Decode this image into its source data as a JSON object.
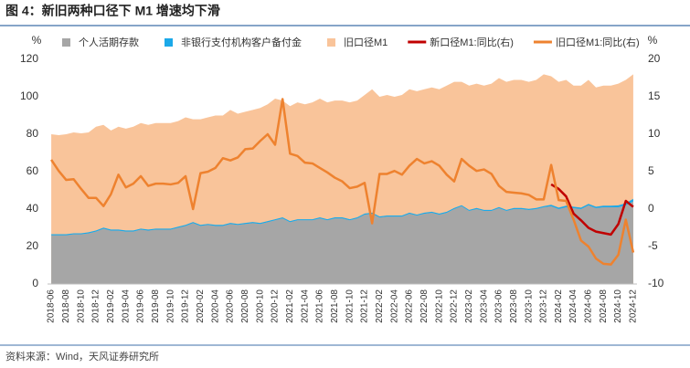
{
  "chart_data": {
    "type": "area-line",
    "title": "图 4：新旧两种口径下 M1 增速均下滑",
    "source": "资料来源：Wind，天风证券研究所",
    "y_label": "%",
    "y2_label": "%",
    "categories": [
      "2018-06",
      null,
      "2018-08",
      null,
      "2018-10",
      null,
      "2018-12",
      null,
      "2019-02",
      null,
      "2019-04",
      null,
      "2019-06",
      null,
      "2019-08",
      null,
      "2019-10",
      null,
      "2019-12",
      null,
      "2020-02",
      null,
      "2020-04",
      null,
      "2020-06",
      null,
      "2020-08",
      null,
      "2020-10",
      null,
      "2020-12",
      null,
      "2021-02",
      null,
      "2021-04",
      null,
      "2021-06",
      null,
      "2021-08",
      null,
      "2021-10",
      null,
      "2021-12",
      null,
      "2022-02",
      null,
      "2022-04",
      null,
      "2022-06",
      null,
      "2022-08",
      null,
      "2022-10",
      null,
      "2022-12",
      null,
      "2023-02",
      null,
      "2023-04",
      null,
      "2023-06",
      null,
      "2023-08",
      null,
      "2023-10",
      null,
      "2023-12",
      null,
      "2024-02",
      null,
      "2024-04",
      null,
      "2024-06",
      null,
      "2024-08",
      null,
      "2024-10",
      null,
      "2024-12"
    ],
    "ylim": [
      0,
      120
    ],
    "yticks": [
      0,
      20,
      40,
      60,
      80,
      100,
      120
    ],
    "y2lim": [
      -10,
      20
    ],
    "y2ticks": [
      -10,
      -5,
      0,
      5,
      10,
      15,
      20
    ],
    "grid": false,
    "legend": "top",
    "series": [
      {
        "name": "旧口径M1",
        "mark": "area",
        "color": "#f9c49a",
        "legend_order": 2,
        "values": [
          80,
          79.5,
          80,
          81,
          80.5,
          81,
          84,
          85,
          82,
          84,
          83,
          84,
          86,
          85,
          86,
          86,
          86,
          87,
          89,
          88,
          88,
          89,
          90,
          90,
          93,
          91,
          92,
          93,
          94,
          96,
          99,
          98,
          95,
          97,
          96,
          97,
          99,
          97,
          98,
          98,
          97,
          98,
          101,
          104,
          100,
          101,
          100,
          101,
          104,
          103,
          104,
          105,
          104,
          106,
          108,
          108,
          106,
          107,
          106,
          107,
          110,
          108,
          109,
          109,
          108,
          109,
          112,
          111,
          108,
          109,
          106,
          106,
          109,
          105,
          106,
          106,
          107,
          109,
          112
        ]
      },
      {
        "name": "个人活期存款",
        "mark": "area",
        "stack": "s",
        "color": "#a6a6a6",
        "legend_order": 0,
        "values": [
          26,
          26,
          26,
          26.5,
          26.5,
          27,
          28,
          29.5,
          28.5,
          28.5,
          28,
          28,
          29,
          28.5,
          29,
          29,
          29,
          30,
          31,
          32.5,
          31,
          31.5,
          31,
          31,
          32,
          31.5,
          32,
          32.5,
          32,
          33,
          34,
          35,
          33,
          34,
          34,
          34,
          35,
          34,
          35,
          35,
          34,
          35,
          37,
          37.5,
          35.5,
          36,
          36,
          36,
          37.5,
          36.5,
          37.5,
          38,
          37,
          38,
          40,
          41.5,
          39,
          40,
          39,
          39,
          40.5,
          39,
          40,
          40,
          39.5,
          40,
          41,
          41.5,
          40,
          41,
          40.5,
          40,
          42,
          40.5,
          41,
          41,
          41,
          42,
          44
        ]
      },
      {
        "name": "非银行支付机构客户备付金",
        "mark": "area",
        "stack": "s",
        "color": "#1ba9e9",
        "legend_order": 1,
        "values": [
          0.6,
          0.6,
          0.6,
          0.6,
          0.6,
          0.6,
          0.6,
          0.6,
          0.6,
          0.6,
          0.6,
          0.6,
          0.6,
          0.6,
          0.6,
          0.6,
          0.6,
          0.6,
          0.6,
          0.6,
          0.6,
          0.6,
          0.6,
          0.6,
          0.6,
          0.6,
          0.6,
          0.6,
          0.6,
          0.6,
          0.6,
          0.6,
          0.6,
          0.6,
          0.6,
          0.6,
          0.6,
          0.6,
          0.6,
          0.6,
          0.6,
          0.6,
          0.6,
          0.6,
          0.6,
          0.6,
          0.6,
          0.6,
          0.6,
          0.6,
          0.6,
          0.6,
          0.6,
          0.6,
          0.6,
          0.6,
          0.6,
          0.6,
          0.6,
          0.6,
          0.6,
          0.6,
          0.6,
          0.6,
          0.6,
          0.6,
          0.6,
          0.8,
          0.8,
          0.8,
          0.8,
          0.8,
          0.8,
          0.8,
          0.8,
          0.8,
          1,
          1.2,
          1.5
        ]
      },
      {
        "name": "新口径M1:同比(右)",
        "mark": "line",
        "axis": "y2",
        "color": "#c00000",
        "legend_order": 3,
        "values": [
          null,
          null,
          null,
          null,
          null,
          null,
          null,
          null,
          null,
          null,
          null,
          null,
          null,
          null,
          null,
          null,
          null,
          null,
          null,
          null,
          null,
          null,
          null,
          null,
          null,
          null,
          null,
          null,
          null,
          null,
          null,
          null,
          null,
          null,
          null,
          null,
          null,
          null,
          null,
          null,
          null,
          null,
          null,
          null,
          null,
          null,
          null,
          null,
          null,
          null,
          null,
          null,
          null,
          null,
          null,
          null,
          null,
          null,
          null,
          null,
          null,
          null,
          null,
          null,
          null,
          null,
          null,
          3.3,
          2.7,
          1.7,
          -0.6,
          -1.5,
          -2.5,
          -3.0,
          -3.2,
          -3.4,
          -2.0,
          1.1,
          0.3
        ]
      },
      {
        "name": "旧口径M1:同比(右)",
        "mark": "line",
        "axis": "y2",
        "color": "#ee822f",
        "legend_order": 4,
        "values": [
          6.6,
          5.1,
          3.9,
          4.0,
          2.7,
          1.5,
          1.5,
          0.4,
          2.0,
          4.6,
          2.9,
          3.4,
          4.4,
          3.1,
          3.4,
          3.4,
          3.3,
          3.5,
          4.4,
          0.0,
          4.8,
          5.0,
          5.5,
          6.8,
          6.5,
          6.9,
          8.0,
          8.1,
          9.1,
          10.0,
          8.6,
          14.7,
          7.4,
          7.1,
          6.2,
          6.1,
          5.5,
          4.9,
          4.2,
          3.7,
          2.8,
          3.0,
          3.5,
          -1.9,
          4.7,
          4.7,
          5.1,
          4.6,
          5.8,
          6.7,
          6.1,
          6.4,
          5.8,
          4.6,
          3.7,
          6.7,
          5.8,
          5.1,
          5.3,
          4.7,
          3.1,
          2.3,
          2.2,
          2.1,
          1.9,
          1.3,
          1.3,
          5.9,
          1.2,
          1.1,
          -1.4,
          -4.2,
          -5.0,
          -6.6,
          -7.3,
          -7.4,
          -6.1,
          -1.4,
          -5.8
        ]
      }
    ]
  }
}
